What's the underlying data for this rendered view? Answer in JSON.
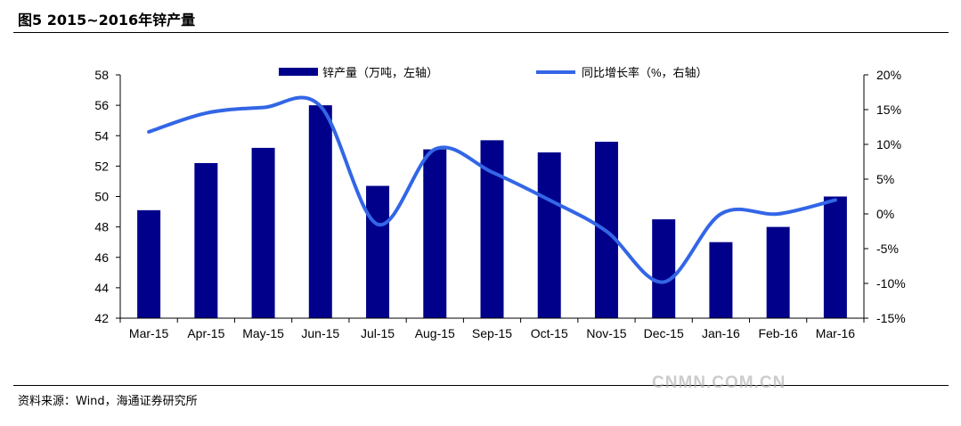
{
  "figure": {
    "title": "图5  2015~2016年锌产量",
    "source": "资料来源：Wind，海通证券研究所",
    "watermark": "CNMN.COM.CN"
  },
  "chart_data": {
    "type": "bar+line",
    "categories": [
      "Mar-15",
      "Apr-15",
      "May-15",
      "Jun-15",
      "Jul-15",
      "Aug-15",
      "Sep-15",
      "Oct-15",
      "Nov-15",
      "Dec-15",
      "Jan-16",
      "Feb-16",
      "Mar-16"
    ],
    "series": [
      {
        "name": "锌产量（万吨，左轴）",
        "type": "bar",
        "axis": "left",
        "color": "#00008B",
        "values": [
          49.1,
          52.2,
          53.2,
          56.0,
          50.7,
          53.1,
          53.7,
          52.9,
          53.6,
          48.5,
          47.0,
          48.0,
          50.0
        ]
      },
      {
        "name": "同比增长率（%，右轴）",
        "type": "line",
        "axis": "right",
        "color": "#3366E6",
        "values": [
          11.8,
          14.5,
          15.3,
          15.5,
          -1.5,
          9.3,
          6.0,
          2.0,
          -2.5,
          -9.8,
          0.0,
          0.0,
          2.0
        ]
      }
    ],
    "left_axis": {
      "min": 42,
      "max": 58,
      "step": 2,
      "ticks": [
        "42",
        "44",
        "46",
        "48",
        "50",
        "52",
        "54",
        "56",
        "58"
      ]
    },
    "right_axis": {
      "min": -15,
      "max": 20,
      "step": 5,
      "ticks": [
        "-15%",
        "-10%",
        "-5%",
        "0%",
        "5%",
        "10%",
        "15%",
        "20%"
      ]
    },
    "grid": false,
    "legend_position": "top"
  }
}
